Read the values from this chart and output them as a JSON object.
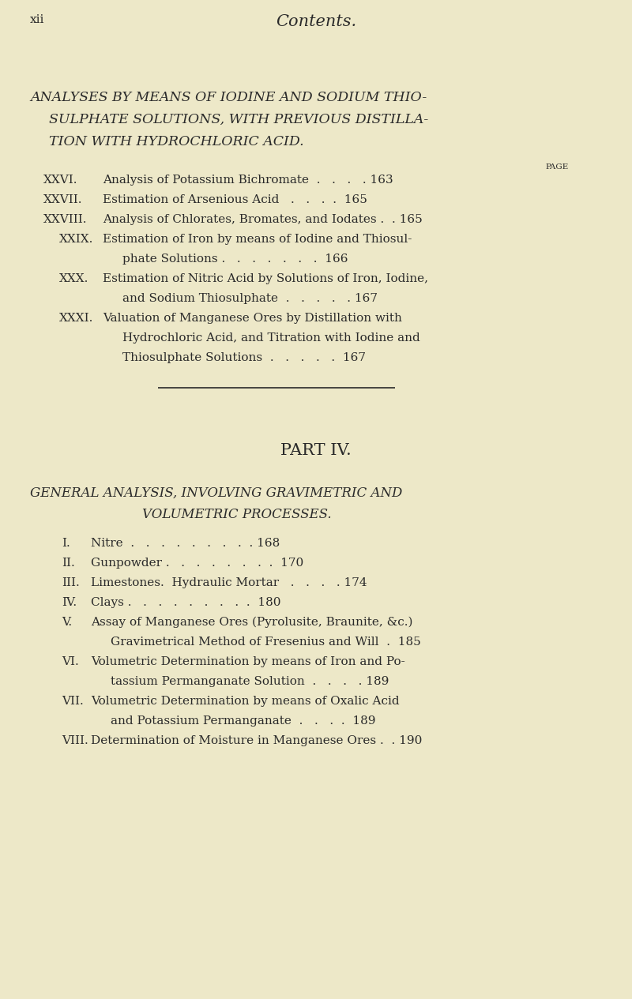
{
  "bg_color": "#ede8c8",
  "text_color": "#2a2a2a",
  "page_label": "xii",
  "header_title": "Contents.",
  "sh1": "ANALYSES BY MEANS OF IODINE AND SODIUM THIO-",
  "sh2": "SULPHATE SOLUTIONS, WITH PREVIOUS DISTILLA-",
  "sh3": "TION WITH HYDROCHLORIC ACID.",
  "page_col_label": "PAGE",
  "entries_top": [
    {
      "num": "XXVI.",
      "lines": [
        "Analysis of Potassium Bichromate  .   .   .   . 163"
      ],
      "continuation": false
    },
    {
      "num": "XXVII.",
      "lines": [
        "Estimation of Arsenious Acid   .   .   .  .  165"
      ],
      "continuation": false
    },
    {
      "num": "XXVIII.",
      "lines": [
        "Analysis of Chlorates, Bromates, and Iodates .  . 165"
      ],
      "continuation": false
    },
    {
      "num": "XXIX.",
      "lines": [
        "Estimation of Iron by means of Iodine and Thiosul-",
        "phate Solutions .   .   .   .   .   .   .  166"
      ],
      "continuation": true
    },
    {
      "num": "XXX.",
      "lines": [
        "Estimation of Nitric Acid by Solutions of Iron, Iodine,",
        "and Sodium Thiosulphate  .   .   .   .   . 167"
      ],
      "continuation": true
    },
    {
      "num": "XXXI.",
      "lines": [
        "Valuation of Manganese Ores by Distillation with",
        "Hydrochloric Acid, and Titration with Iodine and",
        "Thiosulphate Solutions  .   .   .   .   .  167"
      ],
      "continuation": true
    }
  ],
  "part_heading": "PART IV.",
  "part_sub1": "GENERAL ANALYSIS, INVOLVING GRAVIMETRIC AND",
  "part_sub2": "VOLUMETRIC PROCESSES.",
  "entries_bottom": [
    {
      "num": "I.",
      "lines": [
        "Nitre  .   .   .   .   .   .   .   .  . 168"
      ],
      "continuation": false
    },
    {
      "num": "II.",
      "lines": [
        "Gunpowder .   .   .   .   .   .   .  .  170"
      ],
      "continuation": false
    },
    {
      "num": "III.",
      "lines": [
        "Limestones.  Hydraulic Mortar   .   .   .   . 174"
      ],
      "continuation": false
    },
    {
      "num": "IV.",
      "lines": [
        "Clays .   .   .   .   .   .   .   .  .  180"
      ],
      "continuation": false
    },
    {
      "num": "V.",
      "lines": [
        "Assay of Manganese Ores (Pyrolusite, Braunite, &c.)",
        "Gravimetrical Method of Fresenius and Will  .  185"
      ],
      "continuation": true
    },
    {
      "num": "VI.",
      "lines": [
        "Volumetric Determination by means of Iron and Po-",
        "tassium Permanganate Solution  .   .   .   . 189"
      ],
      "continuation": true
    },
    {
      "num": "VII.",
      "lines": [
        "Volumetric Determination by means of Oxalic Acid",
        "and Potassium Permanganate  .   .   .  .  189"
      ],
      "continuation": true
    },
    {
      "num": "VIII.",
      "lines": [
        "Determination of Moisture in Manganese Ores .  . 190"
      ],
      "continuation": false
    }
  ]
}
